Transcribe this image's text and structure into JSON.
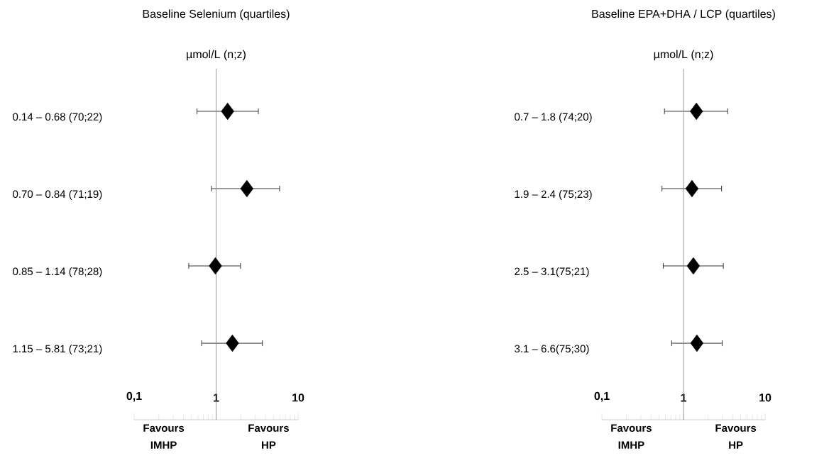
{
  "chart_data": [
    {
      "type": "scatter",
      "orientation": "horizontal",
      "title": "Baseline Selenium (quartiles)",
      "subtitle": "µmol/L (n;z)",
      "categories": [
        "0.14 – 0.68 (70;22)",
        "0.70 – 0.84 (71;19)",
        "0.85 – 1.14 (78;28)",
        "1.15 – 5.81 (73;21)"
      ],
      "values": [
        1.38,
        2.37,
        0.98,
        1.58
      ],
      "errors": [
        [
          0.58,
          3.3
        ],
        [
          0.87,
          6.0
        ],
        [
          0.46,
          2.0
        ],
        [
          0.66,
          3.7
        ]
      ],
      "color": "#000000",
      "marker": "diamond",
      "log": "x",
      "xlim": [
        0.1,
        10
      ],
      "xticks": [
        {
          "value": 0.1,
          "label": "0,1"
        },
        {
          "value": 0.2,
          "label": null
        },
        {
          "value": 0.3,
          "label": null
        },
        {
          "value": 0.4,
          "label": null
        },
        {
          "value": 0.5,
          "label": null
        },
        {
          "value": 0.6,
          "label": null
        },
        {
          "value": 0.7,
          "label": null
        },
        {
          "value": 0.8,
          "label": null
        },
        {
          "value": 0.9,
          "label": null
        },
        1,
        {
          "value": 2,
          "label": null
        },
        {
          "value": 3,
          "label": null
        },
        {
          "value": 4,
          "label": null
        },
        {
          "value": 5,
          "label": null
        },
        {
          "value": 6,
          "label": null
        },
        {
          "value": 7,
          "label": null
        },
        {
          "value": 8,
          "label": null
        },
        {
          "value": 9,
          "label": null
        },
        10
      ],
      "ref_lines": [
        {
          "axis": "x",
          "value": 1,
          "color": "#808080"
        }
      ],
      "annotations": [
        "Favours IMHP",
        "Favours HP"
      ]
    },
    {
      "type": "scatter",
      "orientation": "horizontal",
      "title": "Baseline EPA+DHA / LCP  (quartiles)",
      "subtitle": "µmol/L (n;z)",
      "categories": [
        "0.7 – 1.8 (74;20)",
        "1.9 – 2.4 (75;23)",
        "2.5 – 3.1(75;21)",
        "3.1 – 6.6(75;30)"
      ],
      "values": [
        1.44,
        1.27,
        1.32,
        1.46
      ],
      "errors": [
        [
          0.58,
          3.5
        ],
        [
          0.54,
          2.95
        ],
        [
          0.56,
          3.1
        ],
        [
          0.71,
          3.0
        ]
      ],
      "color": "#000000",
      "marker": "diamond",
      "log": "x",
      "xlim": [
        0.1,
        10
      ],
      "xticks": [
        {
          "value": 0.1,
          "label": "0,1"
        },
        {
          "value": 0.2,
          "label": null
        },
        {
          "value": 0.3,
          "label": null
        },
        {
          "value": 0.4,
          "label": null
        },
        {
          "value": 0.5,
          "label": null
        },
        {
          "value": 0.6,
          "label": null
        },
        {
          "value": 0.7,
          "label": null
        },
        {
          "value": 0.8,
          "label": null
        },
        {
          "value": 0.9,
          "label": null
        },
        1,
        {
          "value": 2,
          "label": null
        },
        {
          "value": 3,
          "label": null
        },
        {
          "value": 4,
          "label": null
        },
        {
          "value": 5,
          "label": null
        },
        {
          "value": 6,
          "label": null
        },
        {
          "value": 7,
          "label": null
        },
        {
          "value": 8,
          "label": null
        },
        {
          "value": 9,
          "label": null
        },
        10
      ],
      "ref_lines": [
        {
          "axis": "x",
          "value": 1,
          "color": "#808080"
        }
      ],
      "annotations": [
        "Favours IMHP",
        "Favours HP"
      ]
    }
  ]
}
